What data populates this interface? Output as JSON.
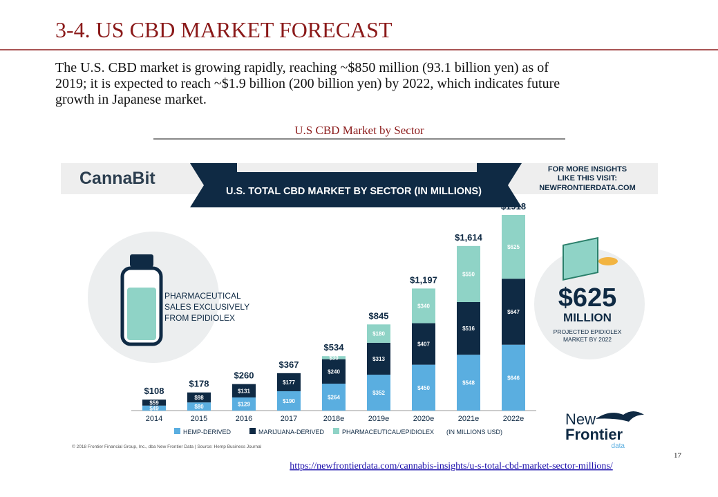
{
  "slide": {
    "heading": "3-4.   US CBD MARKET FORECAST",
    "paragraph": [
      "The U.S. CBD market is growing rapidly, reaching ~$850 million (93.1 billion yen) as of",
      "2019; it is expected to reach ~$1.9 billion (200 billion yen) by 2022, which indicates future",
      "growth in Japanese market."
    ],
    "subtitle": "U.S CBD Market by Sector",
    "page_number": "17",
    "link": "https://newfrontierdata.com/cannabis-insights/u-s-total-cbd-market-sector-millions/"
  },
  "chart_data": {
    "type": "stacked_bar",
    "brand": "CannaBit",
    "title": "U.S. TOTAL CBD MARKET BY SECTOR (IN MILLIONS)",
    "promo": [
      "FOR MORE INSIGHTS",
      "LIKE THIS VISIT:",
      "NEWFRONTIERDATA.COM"
    ],
    "left_note": [
      "PHARMACEUTICAL",
      "SALES EXCLUSIVELY",
      "FROM EPIDIOLEX"
    ],
    "callout": {
      "value": "$625",
      "unit": "MILLION",
      "note": [
        "PROJECTED EPIDIOLEX",
        "MARKET BY 2022"
      ]
    },
    "categories": [
      "2014",
      "2015",
      "2016",
      "2017",
      "2018e",
      "2019e",
      "2020e",
      "2021e",
      "2022e"
    ],
    "series": [
      {
        "name": "HEMP-DERIVED",
        "color": "#5aaee0",
        "values": [
          49,
          80,
          129,
          190,
          264,
          352,
          450,
          548,
          646
        ],
        "value_labels": [
          "$49",
          "$80",
          "$129",
          "$190",
          "$264",
          "$352",
          "$450",
          "$548",
          "$646"
        ]
      },
      {
        "name": "MARIJUANA-DERIVED",
        "color": "#0f2a44",
        "values": [
          59,
          98,
          131,
          177,
          240,
          313,
          407,
          516,
          647
        ],
        "value_labels": [
          "$59",
          "$98",
          "$131",
          "$177",
          "$240",
          "$313",
          "$407",
          "$516",
          "$647"
        ]
      },
      {
        "name": "PHARMACEUTICAL/EPIDIOLEX",
        "color": "#8fd3c6",
        "values": [
          null,
          null,
          null,
          null,
          30,
          180,
          340,
          550,
          625
        ],
        "value_labels": [
          null,
          null,
          null,
          null,
          "$30",
          "$180",
          "$340",
          "$550",
          "$625"
        ]
      }
    ],
    "totals": [
      108,
      178,
      260,
      367,
      534,
      845,
      1197,
      1614,
      1918
    ],
    "total_labels": [
      "$108",
      "$178",
      "$260",
      "$367",
      "$534",
      "$845",
      "$1,197",
      "$1,614",
      "$1918"
    ],
    "units_note": "(IN MILLIONS USD)",
    "copyright": "© 2018 Frontier Financial Group, Inc., dba New Frontier Data  |  Source: Hemp Business Journal",
    "logo": [
      "New",
      "Frontier",
      "data"
    ]
  }
}
